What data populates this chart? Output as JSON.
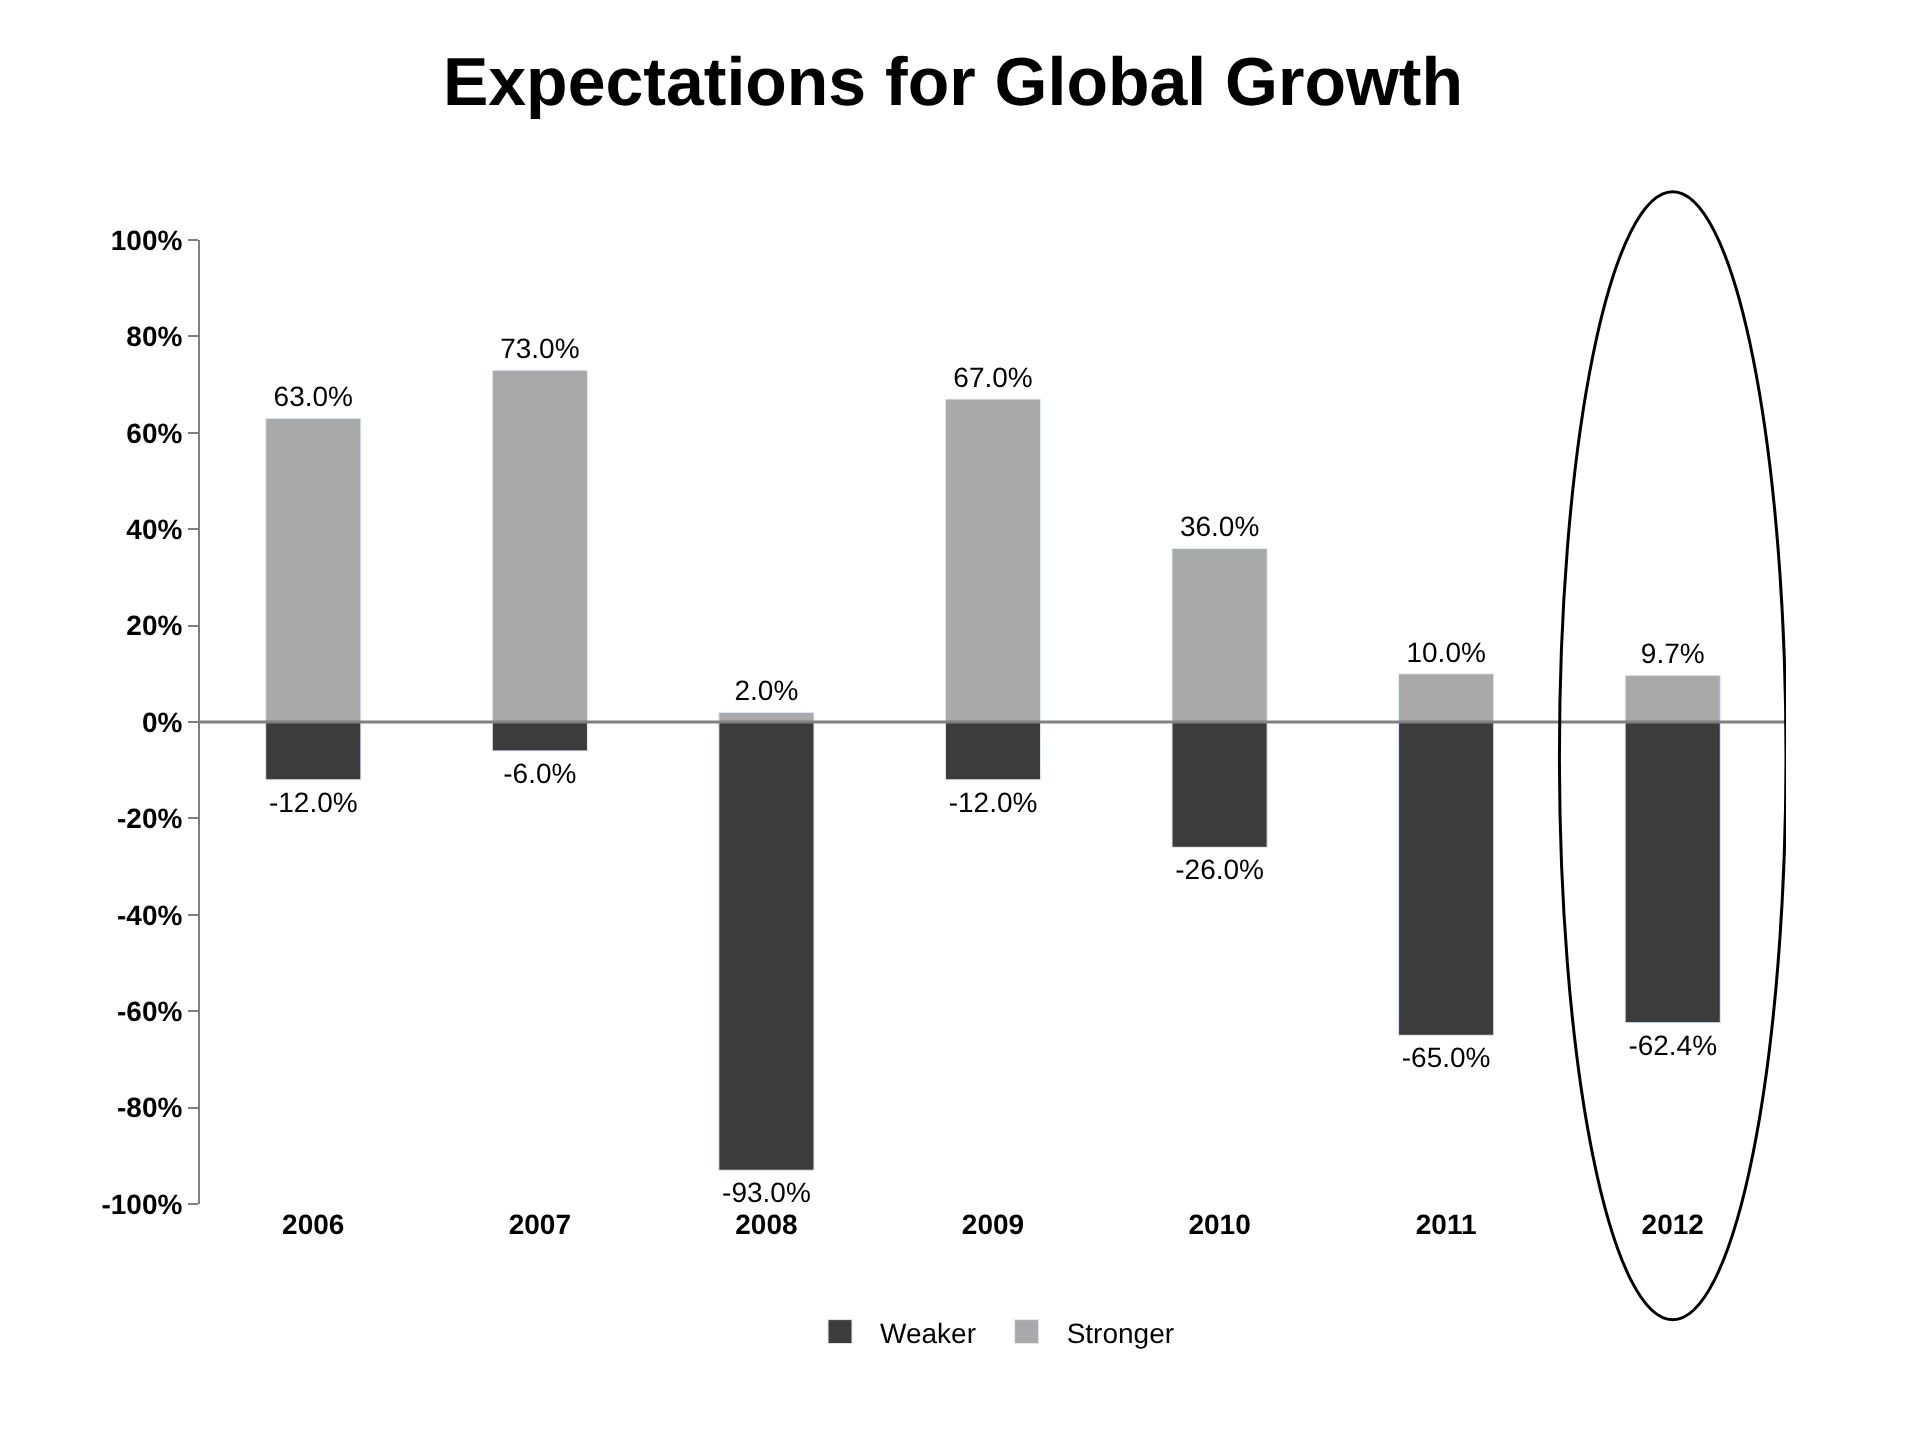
{
  "chart_data": {
    "type": "bar",
    "title": "Expectations for Global Growth",
    "categories": [
      "2006",
      "2007",
      "2008",
      "2009",
      "2010",
      "2011",
      "2012"
    ],
    "series": [
      {
        "name": "Weaker",
        "color": "#3c3c3c",
        "values": [
          -12.0,
          -6.0,
          -93.0,
          -12.0,
          -26.0,
          -65.0,
          -62.4
        ],
        "value_labels": [
          "-12.0%",
          "-6.0%",
          "-93.0%",
          "-12.0%",
          "-26.0%",
          "-65.0%",
          "-62.4%"
        ]
      },
      {
        "name": "Stronger",
        "color": "#a9a9a9",
        "values": [
          63.0,
          73.0,
          2.0,
          67.0,
          36.0,
          10.0,
          9.7
        ],
        "value_labels": [
          "63.0%",
          "73.0%",
          "2.0%",
          "67.0%",
          "36.0%",
          "10.0%",
          "9.7%"
        ]
      }
    ],
    "stacked": true,
    "ylim": [
      -100,
      100
    ],
    "yticks": [
      {
        "value": -100,
        "label": "-100%"
      },
      {
        "value": -80,
        "label": "-80%"
      },
      {
        "value": -60,
        "label": "-60%"
      },
      {
        "value": -40,
        "label": "-40%"
      },
      {
        "value": -20,
        "label": "-20%"
      },
      {
        "value": 0,
        "label": "0%"
      },
      {
        "value": 20,
        "label": "20%"
      },
      {
        "value": 40,
        "label": "40%"
      },
      {
        "value": 60,
        "label": "60%"
      },
      {
        "value": 80,
        "label": "80%"
      },
      {
        "value": 100,
        "label": "100%"
      }
    ],
    "ref_lines": [
      {
        "axis": "y",
        "value": 0,
        "color": "#808080"
      }
    ],
    "legend": "bottom"
  }
}
